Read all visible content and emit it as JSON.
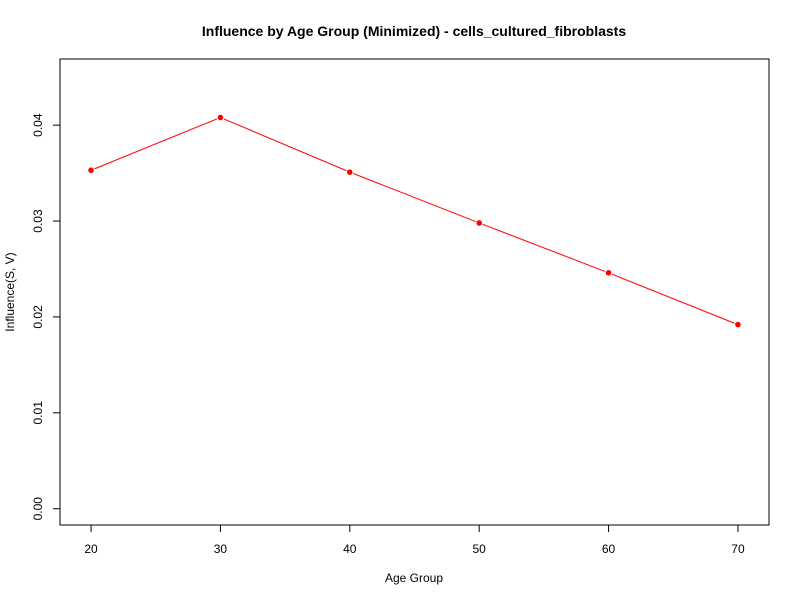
{
  "chart_data": {
    "type": "line",
    "title": "Influence by Age Group (Minimized) - cells_cultured_fibroblasts",
    "xlabel": "Age Group",
    "ylabel": "Influence(S, V)",
    "x": [
      20,
      30,
      40,
      50,
      60,
      70
    ],
    "series": [
      {
        "values": [
          0.0353,
          0.0408,
          0.0351,
          0.0298,
          0.0246,
          0.0192
        ],
        "color": "#ff0000"
      }
    ],
    "xlim": [
      17.6,
      72.4
    ],
    "ylim": [
      -0.0017,
      0.0469
    ],
    "x_ticks": [
      "20",
      "30",
      "40",
      "50",
      "60",
      "70"
    ],
    "y_ticks": [
      "0.00",
      "0.01",
      "0.02",
      "0.03",
      "0.04"
    ],
    "grid": false,
    "legend": "none"
  }
}
